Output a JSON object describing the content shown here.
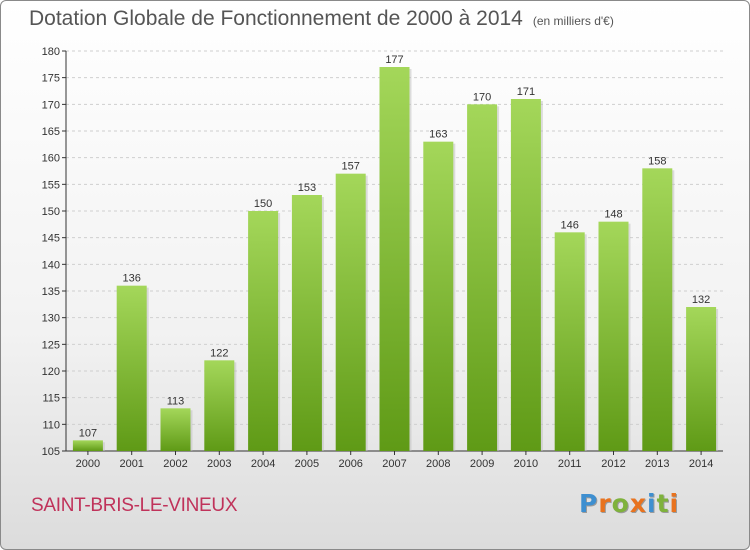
{
  "header": {
    "title": "Dotation Globale de Fonctionnement de 2000 à 2014",
    "unit": "(en milliers d'€)"
  },
  "footer": {
    "commune": "SAINT-BRIS-LE-VINEUX",
    "logo_letters": [
      "P",
      "r",
      "o",
      "x",
      "i",
      "t",
      "i"
    ],
    "logo_colors": [
      "#3e8fd0",
      "#e8731f",
      "#7fb23c",
      "#e8731f",
      "#3e8fd0",
      "#7fb23c",
      "#e8731f"
    ]
  },
  "colors": {
    "bar_light": "#a4d75a",
    "bar_dark": "#5f9a16",
    "grid": "#cfcfcf",
    "axis": "#333333"
  },
  "chart_data": {
    "type": "bar",
    "title": "Dotation Globale de Fonctionnement de 2000 à 2014",
    "subtitle": "(en milliers d'€)",
    "categories": [
      "2000",
      "2001",
      "2002",
      "2003",
      "2004",
      "2005",
      "2006",
      "2007",
      "2008",
      "2009",
      "2010",
      "2011",
      "2012",
      "2013",
      "2014"
    ],
    "values": [
      107,
      136,
      113,
      122,
      150,
      153,
      157,
      177,
      163,
      170,
      171,
      146,
      148,
      158,
      132
    ],
    "ylim": [
      105,
      180
    ],
    "yticks": [
      105,
      110,
      115,
      120,
      125,
      130,
      135,
      140,
      145,
      150,
      155,
      160,
      165,
      170,
      175,
      180
    ],
    "grid": true,
    "legend": "none"
  }
}
